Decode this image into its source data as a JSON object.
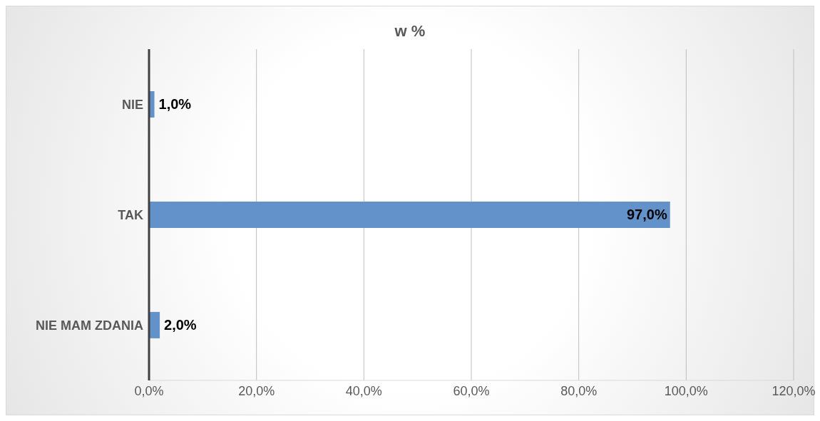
{
  "chart_data": {
    "type": "bar",
    "orientation": "horizontal",
    "title": "w %",
    "categories": [
      "NIE",
      "TAK",
      "NIE MAM ZDANIA"
    ],
    "values": [
      1,
      97,
      2
    ],
    "color": "#6391c9",
    "value_labels": [
      "1,0%",
      "97,0%",
      "2,0%"
    ],
    "xlim": [
      0,
      120
    ],
    "xticks": [
      {
        "value": 0,
        "label": "0,0%"
      },
      {
        "value": 20,
        "label": "20,0%"
      },
      {
        "value": 40,
        "label": "40,0%"
      },
      {
        "value": 60,
        "label": "60,0%"
      },
      {
        "value": 80,
        "label": "80,0%"
      },
      {
        "value": 100,
        "label": "100,0%"
      },
      {
        "value": 120,
        "label": "120,0%"
      }
    ],
    "grid": "x"
  }
}
